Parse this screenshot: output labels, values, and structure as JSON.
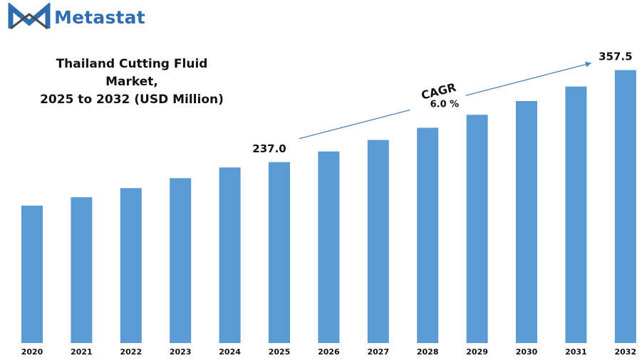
{
  "brand": {
    "name": "Metastat",
    "logo_icon": "metastat-m-logo-icon",
    "color": "#2f6db1"
  },
  "chart_data": {
    "type": "bar",
    "title_lines": [
      "Thailand Cutting Fluid Market,",
      "2025 to 2032 (USD Million)"
    ],
    "categories": [
      "2020",
      "2021",
      "2022",
      "2023",
      "2024",
      "2025",
      "2026",
      "2027",
      "2028",
      "2029",
      "2030",
      "2031",
      "2032"
    ],
    "values": [
      180,
      191,
      203,
      216,
      230,
      237,
      251,
      266,
      282,
      299,
      317,
      336,
      357.5
    ],
    "data_labels": [
      {
        "category": "2025",
        "text": "237.0"
      },
      {
        "category": "2032",
        "text": "357.5"
      }
    ],
    "annotation": {
      "label": "CAGR",
      "value": "6.0 %",
      "from": "2025",
      "to": "2032"
    },
    "bar_color": "#5b9bd5",
    "xlabel": "",
    "ylabel": "",
    "ylim": [
      0,
      440
    ],
    "grid": false,
    "legend": "none"
  }
}
